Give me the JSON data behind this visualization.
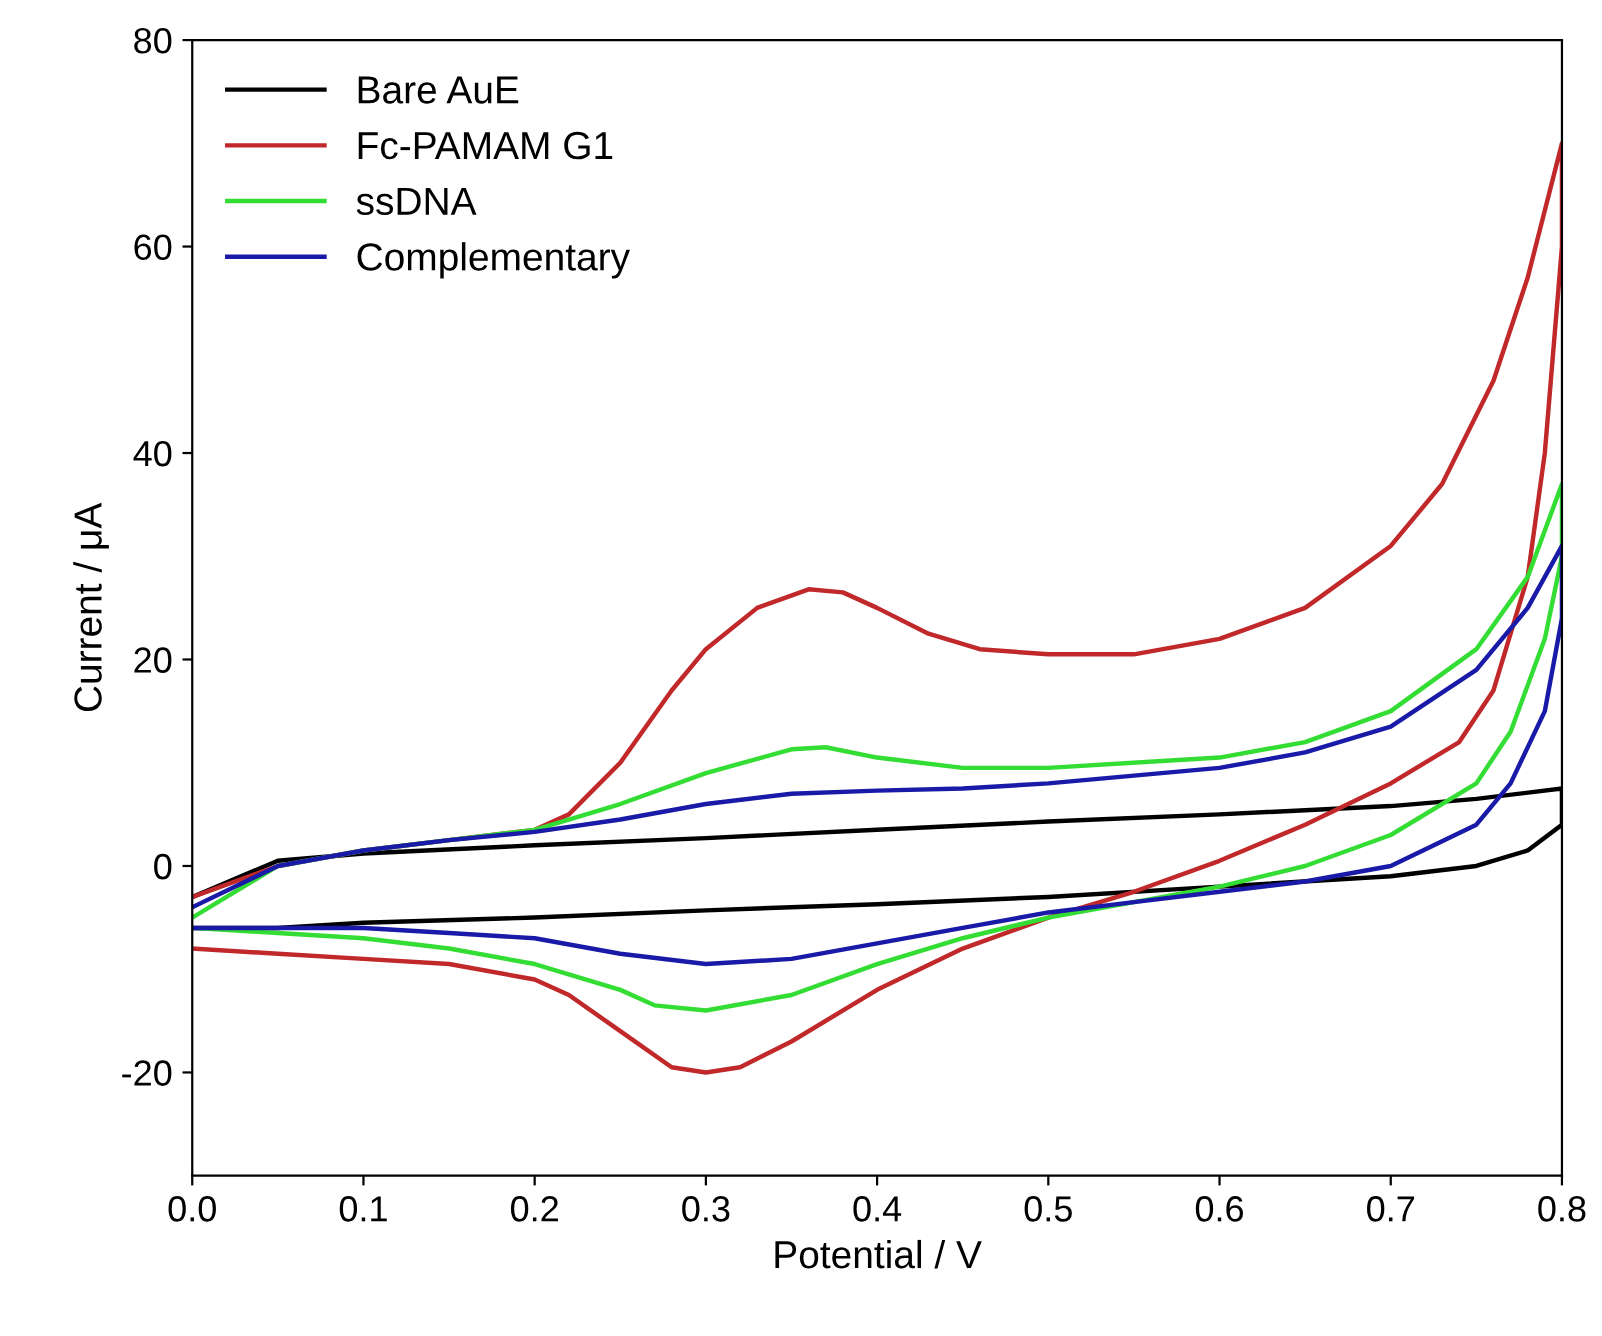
{
  "chart_data": {
    "type": "line",
    "xlabel": "Potential / V",
    "ylabel": "Current / μA",
    "xlim": [
      0,
      0.8
    ],
    "xticks": [
      {
        "value": 0,
        "label": "0.0"
      },
      0.1,
      0.2,
      0.3,
      0.4,
      0.5,
      0.6,
      0.7,
      0.8
    ],
    "ylim": [
      -30,
      80
    ],
    "yticks": [
      -20,
      0,
      20,
      40,
      60,
      80
    ],
    "grid": false,
    "legend": "top left",
    "marker": "none",
    "line_style": "solid",
    "series": [
      {
        "name": "Bare AuE",
        "color": "#000000",
        "x": [
          0,
          0.05,
          0.1,
          0.2,
          0.3,
          0.4,
          0.5,
          0.6,
          0.7,
          0.75,
          0.8,
          0.8,
          0.78,
          0.75,
          0.7,
          0.6,
          0.5,
          0.4,
          0.3,
          0.2,
          0.1,
          0.05,
          0
        ],
        "values": [
          -3,
          0.5,
          1.2,
          2,
          2.7,
          3.5,
          4.3,
          5,
          5.8,
          6.5,
          7.5,
          4,
          1.5,
          0,
          -1,
          -2,
          -3,
          -3.7,
          -4.3,
          -5,
          -5.5,
          -6,
          -6
        ]
      },
      {
        "name": "Fc-PAMAM G1",
        "color": "#c0282a",
        "x": [
          0,
          0.05,
          0.1,
          0.15,
          0.2,
          0.22,
          0.25,
          0.28,
          0.3,
          0.33,
          0.36,
          0.38,
          0.4,
          0.43,
          0.46,
          0.5,
          0.55,
          0.6,
          0.65,
          0.7,
          0.73,
          0.76,
          0.78,
          0.8,
          0.8,
          0.79,
          0.78,
          0.76,
          0.74,
          0.7,
          0.65,
          0.6,
          0.55,
          0.5,
          0.45,
          0.4,
          0.35,
          0.32,
          0.3,
          0.28,
          0.25,
          0.22,
          0.2,
          0.15,
          0.1,
          0.05,
          0
        ],
        "values": [
          -3,
          0,
          1.5,
          2.5,
          3.5,
          5,
          10,
          17,
          21,
          25,
          26.8,
          26.5,
          25,
          22.5,
          21,
          20.5,
          20.5,
          22,
          25,
          31,
          37,
          47,
          57,
          70,
          60,
          40,
          28,
          17,
          12,
          8,
          4,
          0.5,
          -2.5,
          -5,
          -8,
          -12,
          -17,
          -19.5,
          -20,
          -19.5,
          -16,
          -12.5,
          -11,
          -9.5,
          -9,
          -8.5,
          -8
        ]
      },
      {
        "name": "ssDNA",
        "color": "#33dd33",
        "x": [
          0,
          0.05,
          0.1,
          0.15,
          0.2,
          0.25,
          0.3,
          0.35,
          0.37,
          0.4,
          0.45,
          0.5,
          0.6,
          0.65,
          0.7,
          0.75,
          0.78,
          0.8,
          0.8,
          0.79,
          0.77,
          0.75,
          0.7,
          0.65,
          0.6,
          0.55,
          0.5,
          0.45,
          0.4,
          0.35,
          0.3,
          0.27,
          0.25,
          0.2,
          0.15,
          0.1,
          0.05,
          0
        ],
        "values": [
          -5,
          0,
          1.5,
          2.5,
          3.5,
          6,
          9,
          11.3,
          11.5,
          10.5,
          9.5,
          9.5,
          10.5,
          12,
          15,
          21,
          28,
          37,
          30,
          22,
          13,
          8,
          3,
          0,
          -2,
          -3.5,
          -5,
          -7,
          -9.5,
          -12.5,
          -14,
          -13.5,
          -12,
          -9.5,
          -8,
          -7,
          -6.5,
          -6
        ]
      },
      {
        "name": "Complementary",
        "color": "#1a1aa8",
        "x": [
          0,
          0.05,
          0.1,
          0.15,
          0.2,
          0.25,
          0.3,
          0.35,
          0.4,
          0.45,
          0.5,
          0.6,
          0.65,
          0.7,
          0.75,
          0.78,
          0.8,
          0.8,
          0.79,
          0.77,
          0.75,
          0.7,
          0.65,
          0.6,
          0.55,
          0.5,
          0.45,
          0.4,
          0.35,
          0.3,
          0.25,
          0.2,
          0.15,
          0.1,
          0.05,
          0
        ],
        "values": [
          -4,
          0,
          1.5,
          2.5,
          3.3,
          4.5,
          6,
          7,
          7.3,
          7.5,
          8,
          9.5,
          11,
          13.5,
          19,
          25,
          31,
          24,
          15,
          8,
          4,
          0,
          -1.5,
          -2.5,
          -3.5,
          -4.5,
          -6,
          -7.5,
          -9,
          -9.5,
          -8.5,
          -7,
          -6.5,
          -6,
          -6,
          -6
        ]
      }
    ]
  }
}
